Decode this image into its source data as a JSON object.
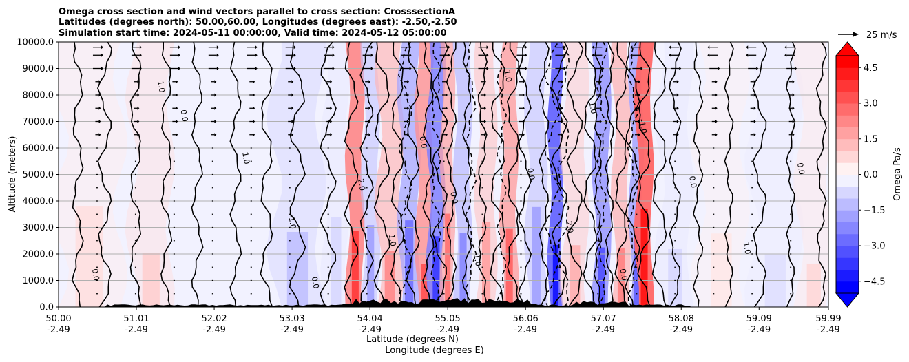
{
  "chart_data": {
    "type": "heatmap",
    "title_lines": [
      "Omega cross section and wind vectors parallel to cross section: CrosssectionA",
      "Latitudes (degrees north): 50.00,60.00, Longitudes (degrees east): -2.50,-2.50",
      "Simulation start time: 2024-05-11 00:00:00, Valid time: 2024-05-12 05:00:00"
    ],
    "ylabel": "Altitude (meters)",
    "xlabel_lines": [
      "Latitude (degrees N)",
      "Longitude (degrees E)"
    ],
    "ylim": [
      0,
      10000
    ],
    "yticks": [
      "0.0",
      "1000.0",
      "2000.0",
      "3000.0",
      "4000.0",
      "5000.0",
      "6000.0",
      "7000.0",
      "8000.0",
      "9000.0",
      "10000.0"
    ],
    "x_latitudes": [
      50.0,
      51.01,
      52.02,
      53.03,
      54.04,
      55.05,
      56.06,
      57.07,
      58.08,
      59.09,
      59.99
    ],
    "xticks_lat": [
      "50.00",
      "51.01",
      "52.02",
      "53.03",
      "54.04",
      "55.05",
      "56.06",
      "57.07",
      "58.08",
      "59.09",
      "59.99"
    ],
    "xticks_lon": [
      "-2.49",
      "-2.49",
      "-2.49",
      "-2.49",
      "-2.49",
      "-2.49",
      "-2.49",
      "-2.49",
      "-2.49",
      "-2.49",
      "-2.49"
    ],
    "grid": "horizontal",
    "colorbar": {
      "label": "Omega Pa/s",
      "range": [
        -5,
        5
      ],
      "ticks": [
        "4.5",
        "3.0",
        "1.5",
        "0.0",
        "−1.5",
        "−3.0",
        "−4.5"
      ],
      "tick_values": [
        4.5,
        3.0,
        1.5,
        0.0,
        -1.5,
        -3.0,
        -4.5
      ],
      "extend": "both",
      "colormap": "bwr"
    },
    "wind_key": {
      "label": "25 m/s",
      "value": 25
    },
    "contour_label_text": [
      "0.0",
      "1.0",
      "0.0",
      "1.0",
      "-1.0",
      "0.0",
      "2.0",
      "1.0",
      "0.0",
      "0.0",
      "-1.0",
      "1.0",
      "0.0",
      "2.0",
      "1.0",
      "0.0",
      "-1.0",
      "0.0",
      "1.0",
      "0.0"
    ],
    "omega_bands": [
      {
        "lat": 50.4,
        "w": 0.4,
        "omega": 0.4
      },
      {
        "lat": 51.2,
        "w": 0.25,
        "omega": 0.6
      },
      {
        "lat": 53.1,
        "w": 0.3,
        "omega": -0.8
      },
      {
        "lat": 53.6,
        "w": 0.15,
        "omega": -0.5
      },
      {
        "lat": 53.85,
        "w": 0.1,
        "omega": 2.5
      },
      {
        "lat": 54.05,
        "w": 0.1,
        "omega": -1.2
      },
      {
        "lat": 54.3,
        "w": 0.15,
        "omega": 1.5
      },
      {
        "lat": 54.55,
        "w": 0.12,
        "omega": -1.8
      },
      {
        "lat": 54.75,
        "w": 0.1,
        "omega": 2.2
      },
      {
        "lat": 54.9,
        "w": 0.1,
        "omega": -2.5
      },
      {
        "lat": 55.05,
        "w": 0.08,
        "omega": 1.8
      },
      {
        "lat": 55.25,
        "w": 0.1,
        "omega": -1.5
      },
      {
        "lat": 55.55,
        "w": 0.12,
        "omega": 1.2
      },
      {
        "lat": 55.85,
        "w": 0.1,
        "omega": 2.0
      },
      {
        "lat": 56.2,
        "w": 0.12,
        "omega": -1.2
      },
      {
        "lat": 56.45,
        "w": 0.08,
        "omega": -3.0
      },
      {
        "lat": 56.7,
        "w": 0.15,
        "omega": 1.0
      },
      {
        "lat": 57.05,
        "w": 0.1,
        "omega": -2.2
      },
      {
        "lat": 57.3,
        "w": 0.1,
        "omega": 1.6
      },
      {
        "lat": 57.5,
        "w": 0.08,
        "omega": -2.0
      },
      {
        "lat": 57.6,
        "w": 0.1,
        "omega": 3.0
      },
      {
        "lat": 58.0,
        "w": 0.2,
        "omega": -0.5
      },
      {
        "lat": 58.6,
        "w": 0.3,
        "omega": 0.3
      },
      {
        "lat": 59.3,
        "w": 0.3,
        "omega": -0.4
      },
      {
        "lat": 59.8,
        "w": 0.2,
        "omega": 0.5
      }
    ],
    "contour_lats": [
      50.25,
      50.6,
      51.0,
      51.4,
      51.8,
      52.3,
      52.7,
      53.1,
      53.5,
      53.8,
      54.0,
      54.2,
      54.4,
      54.6,
      54.8,
      54.95,
      55.1,
      55.3,
      55.5,
      55.7,
      55.9,
      56.05,
      56.3,
      56.5,
      56.7,
      56.9,
      57.0,
      57.15,
      57.3,
      57.45,
      57.6,
      57.8,
      58.0,
      58.3,
      58.7,
      59.1,
      59.5,
      59.9
    ],
    "dashed_contour_lats": [
      54.5,
      54.9,
      55.35,
      55.75,
      56.4,
      56.55,
      57.05,
      57.45
    ],
    "wind_columns_lat": [
      50.5,
      51.0,
      51.5,
      52.0,
      52.5,
      53.0,
      53.5,
      54.0,
      54.5,
      55.0,
      55.5,
      56.0,
      56.5,
      57.0,
      57.5,
      58.0,
      58.5,
      59.0,
      59.5
    ],
    "wind_levels": [
      500,
      1000,
      1500,
      2000,
      2500,
      3000,
      3500,
      4000,
      4500,
      5000,
      5500,
      6000,
      6500,
      7000,
      7500,
      8000,
      8500,
      9000,
      9500,
      9800
    ]
  }
}
